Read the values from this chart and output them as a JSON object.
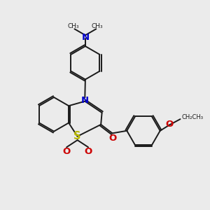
{
  "bg_color": "#ebebeb",
  "bond_color": "#1a1a1a",
  "S_color": "#b8b800",
  "N_color": "#0000cc",
  "O_color": "#cc0000",
  "lw": 1.4,
  "fs": 8.5,
  "xlim": [
    0,
    10
  ],
  "ylim": [
    0,
    10
  ]
}
